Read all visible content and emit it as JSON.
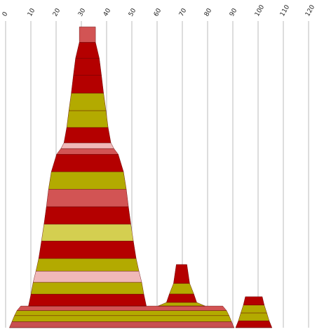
{
  "chart_data": {
    "type": "pyramid",
    "xlim": [
      0,
      120
    ],
    "xticks": [
      0,
      10,
      20,
      30,
      40,
      50,
      60,
      70,
      80,
      90,
      100,
      110,
      120
    ],
    "ylim": [
      0,
      100
    ],
    "grid": true,
    "stacks": [
      {
        "center": 46,
        "base": 0,
        "heights": [
          2,
          2,
          1.7,
          1.5
        ],
        "widths": [
          89,
          87,
          85,
          83
        ],
        "top_width": 80,
        "colors": [
          "#c85050",
          "#b3aa00",
          "#b3aa00",
          "#d25454"
        ]
      },
      {
        "center": 32.4,
        "base": 7.2,
        "heights": [
          3.95,
          3.95,
          3.7,
          4.2,
          5.8,
          5.6,
          5.8,
          5.8,
          5.8,
          5.8,
          1.9,
          1.9,
          5.1,
          5.6,
          5.8,
          6,
          5.6,
          5.3,
          5.1
        ],
        "widths": [
          46.7,
          44.7,
          43,
          40.8,
          38.6,
          36.4,
          34.4,
          32.5,
          30.8,
          28.6,
          24.4,
          21,
          18.6,
          16.4,
          14.7,
          12.8,
          11.1,
          9.4,
          6.4
        ],
        "top_width": 6.4,
        "colors": [
          "#b40000",
          "#b3aa00",
          "#f0b8b8",
          "#b3aa00",
          "#b40000",
          "#d4cf50",
          "#b40000",
          "#d25454",
          "#b3aa00",
          "#b40000",
          "#d25454",
          "#f0b8b8",
          "#b40000",
          "#b3aa00",
          "#b3aa00",
          "#b40000",
          "#b40000",
          "#b40000",
          "#d25454"
        ]
      },
      {
        "center": 69.7,
        "base": 7.2,
        "heights": [
          1.2,
          2.8,
          3.5,
          6.3
        ],
        "widths": [
          18.6,
          12,
          9.7,
          6.4
        ],
        "top_width": 4.2,
        "colors": [
          "#b3aa00",
          "#b40000",
          "#b3aa00",
          "#b40000"
        ]
      },
      {
        "center": 98.3,
        "base": 0,
        "heights": [
          2.3,
          2.6,
          2.6,
          2.8
        ],
        "widths": [
          14.4,
          12.2,
          10.3,
          8.3
        ],
        "top_width": 6.7,
        "colors": [
          "#b40000",
          "#b3aa00",
          "#b3aa00",
          "#b40000"
        ]
      }
    ]
  }
}
